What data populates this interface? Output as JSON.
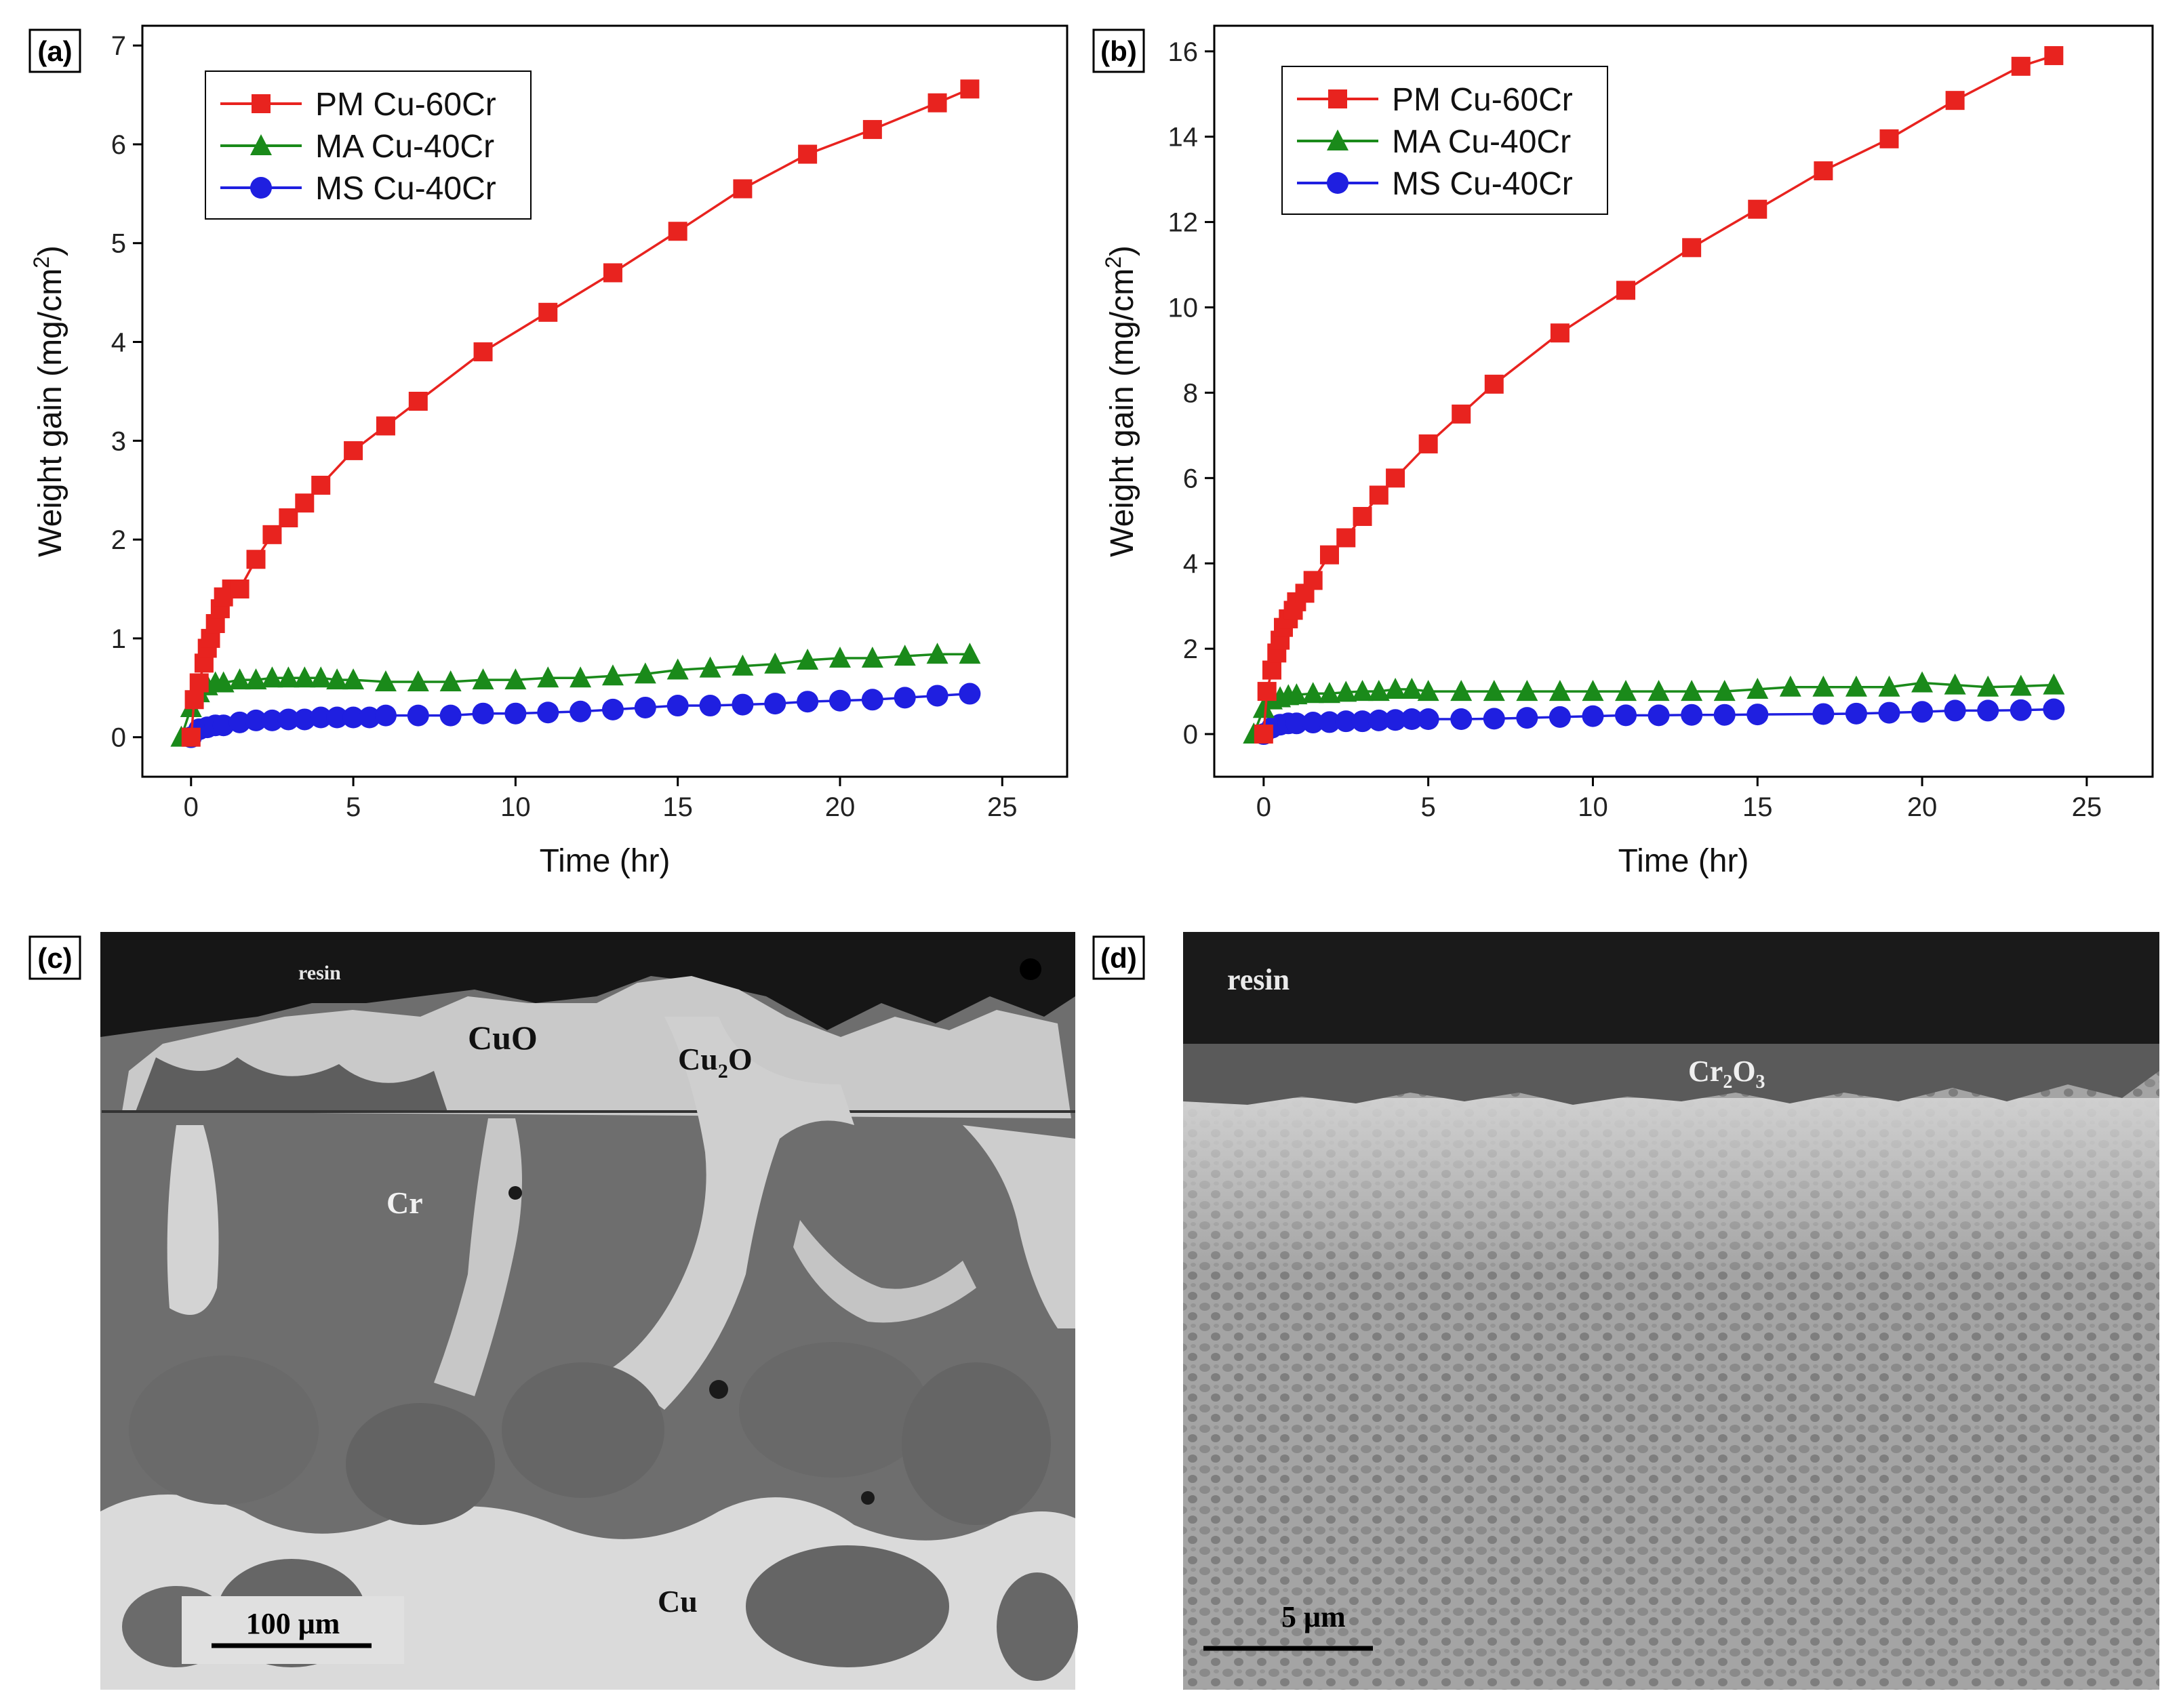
{
  "panels": {
    "a": {
      "tag": "(a)"
    },
    "b": {
      "tag": "(b)"
    },
    "c": {
      "tag": "(c)"
    },
    "d": {
      "tag": "(d)"
    }
  },
  "chart_data": [
    {
      "id": "a",
      "type": "line",
      "xlabel": "Time (hr)",
      "ylabel_main": "Weight gain (mg/cm",
      "ylabel_sup": "2",
      "ylabel_tail": ")",
      "xlim": [
        -1.5,
        27
      ],
      "ylim": [
        -0.4,
        7.2
      ],
      "xticks": [
        0,
        5,
        10,
        15,
        20,
        25
      ],
      "yticks": [
        0,
        1,
        2,
        3,
        4,
        5,
        6,
        7
      ],
      "legend_position": "top-left",
      "series": [
        {
          "name": "PM Cu-60Cr",
          "color": "#e8231f",
          "marker": "square",
          "x": [
            0,
            0.1,
            0.25,
            0.4,
            0.5,
            0.6,
            0.75,
            0.9,
            1.0,
            1.25,
            1.5,
            2,
            2.5,
            3,
            3.5,
            4,
            5,
            6,
            7,
            9,
            11,
            13,
            15,
            17,
            19,
            21,
            23,
            24
          ],
          "y": [
            0,
            0.38,
            0.55,
            0.75,
            0.9,
            1.0,
            1.15,
            1.3,
            1.42,
            1.5,
            1.5,
            1.8,
            2.05,
            2.22,
            2.37,
            2.55,
            2.9,
            3.15,
            3.4,
            3.9,
            4.3,
            4.7,
            5.12,
            5.55,
            5.9,
            6.15,
            6.42,
            6.56
          ]
        },
        {
          "name": "MA Cu-40Cr",
          "color": "#1a8a1a",
          "marker": "triangle",
          "x": [
            -0.3,
            0,
            0.25,
            0.5,
            0.75,
            1.0,
            1.5,
            2,
            2.5,
            3,
            3.5,
            4,
            4.5,
            5,
            6,
            7,
            8,
            9,
            10,
            11,
            12,
            13,
            14,
            15,
            16,
            17,
            18,
            19,
            20,
            21,
            22,
            23,
            24
          ],
          "y": [
            0.0,
            0.3,
            0.45,
            0.52,
            0.55,
            0.55,
            0.58,
            0.58,
            0.6,
            0.6,
            0.6,
            0.6,
            0.58,
            0.58,
            0.56,
            0.56,
            0.56,
            0.58,
            0.58,
            0.6,
            0.6,
            0.62,
            0.64,
            0.68,
            0.7,
            0.72,
            0.74,
            0.78,
            0.8,
            0.8,
            0.82,
            0.84,
            0.84
          ]
        },
        {
          "name": "MS Cu-40Cr",
          "color": "#1f1fe0",
          "marker": "circle",
          "x": [
            0,
            0.25,
            0.5,
            0.75,
            1.0,
            1.5,
            2,
            2.5,
            3,
            3.5,
            4,
            4.5,
            5,
            5.5,
            6,
            7,
            8,
            9,
            10,
            11,
            12,
            13,
            14,
            15,
            16,
            17,
            18,
            19,
            20,
            21,
            22,
            23,
            24
          ],
          "y": [
            0.0,
            0.08,
            0.1,
            0.12,
            0.12,
            0.15,
            0.17,
            0.17,
            0.18,
            0.18,
            0.2,
            0.2,
            0.2,
            0.2,
            0.22,
            0.22,
            0.22,
            0.24,
            0.24,
            0.25,
            0.26,
            0.28,
            0.3,
            0.32,
            0.32,
            0.33,
            0.34,
            0.36,
            0.37,
            0.38,
            0.4,
            0.42,
            0.44
          ]
        }
      ]
    },
    {
      "id": "b",
      "type": "line",
      "xlabel": "Time (hr)",
      "ylabel_main": "Weight gain (mg/cm",
      "ylabel_sup": "2",
      "ylabel_tail": ")",
      "xlim": [
        -1.5,
        27
      ],
      "ylim": [
        -1,
        16.6
      ],
      "xticks": [
        0,
        5,
        10,
        15,
        20,
        25
      ],
      "yticks": [
        0,
        2,
        4,
        6,
        8,
        10,
        12,
        14,
        16
      ],
      "legend_position": "top-left",
      "series": [
        {
          "name": "PM Cu-60Cr",
          "color": "#e8231f",
          "marker": "square",
          "x": [
            0,
            0.1,
            0.25,
            0.4,
            0.5,
            0.6,
            0.75,
            0.9,
            1.0,
            1.25,
            1.5,
            2,
            2.5,
            3,
            3.5,
            4,
            5,
            6,
            7,
            9,
            11,
            13,
            15,
            17,
            19,
            21,
            23,
            24
          ],
          "y": [
            0,
            1.0,
            1.5,
            1.9,
            2.2,
            2.5,
            2.7,
            2.9,
            3.1,
            3.3,
            3.6,
            4.2,
            4.6,
            5.1,
            5.6,
            6.0,
            6.8,
            7.5,
            8.2,
            9.4,
            10.4,
            11.4,
            12.3,
            13.2,
            13.95,
            14.85,
            15.65,
            15.9
          ]
        },
        {
          "name": "MA Cu-40Cr",
          "color": "#1a8a1a",
          "marker": "triangle",
          "x": [
            -0.3,
            0,
            0.25,
            0.5,
            0.75,
            1.0,
            1.5,
            2,
            2.5,
            3,
            3.5,
            4,
            4.5,
            5,
            6,
            7,
            8,
            9,
            10,
            11,
            12,
            13,
            14,
            15,
            16,
            17,
            18,
            19,
            20,
            21,
            22,
            23,
            24
          ],
          "y": [
            0.0,
            0.6,
            0.8,
            0.85,
            0.9,
            0.92,
            0.95,
            0.95,
            0.98,
            1.0,
            1.0,
            1.05,
            1.05,
            1.0,
            1.0,
            1.0,
            1.0,
            1.0,
            1.0,
            1.0,
            1.0,
            1.0,
            1.0,
            1.05,
            1.1,
            1.1,
            1.1,
            1.1,
            1.2,
            1.15,
            1.1,
            1.12,
            1.15
          ]
        },
        {
          "name": "MS Cu-40Cr",
          "color": "#1f1fe0",
          "marker": "circle",
          "x": [
            0,
            0.25,
            0.5,
            0.75,
            1.0,
            1.5,
            2,
            2.5,
            3,
            3.5,
            4,
            4.5,
            5,
            6,
            7,
            8,
            9,
            10,
            11,
            12,
            13,
            14,
            15,
            17,
            18,
            19,
            20,
            21,
            22,
            23,
            24
          ],
          "y": [
            0.0,
            0.15,
            0.22,
            0.25,
            0.25,
            0.27,
            0.28,
            0.3,
            0.3,
            0.32,
            0.33,
            0.35,
            0.35,
            0.35,
            0.36,
            0.38,
            0.4,
            0.42,
            0.44,
            0.44,
            0.45,
            0.45,
            0.46,
            0.47,
            0.48,
            0.5,
            0.52,
            0.55,
            0.55,
            0.56,
            0.58
          ]
        }
      ]
    }
  ],
  "micrographs": {
    "c": {
      "labels": {
        "resin": "resin",
        "cuo": "CuO",
        "cu2o": "Cu",
        "cu2o_sub": "2",
        "cu2o_tail": "O",
        "cr": "Cr",
        "cu": "Cu"
      },
      "scale": "100  μm"
    },
    "d": {
      "labels": {
        "resin": "resin",
        "cr2o3_a": "Cr",
        "cr2o3_sub1": "2",
        "cr2o3_b": "O",
        "cr2o3_sub2": "3"
      },
      "scale": "5 μm"
    }
  }
}
